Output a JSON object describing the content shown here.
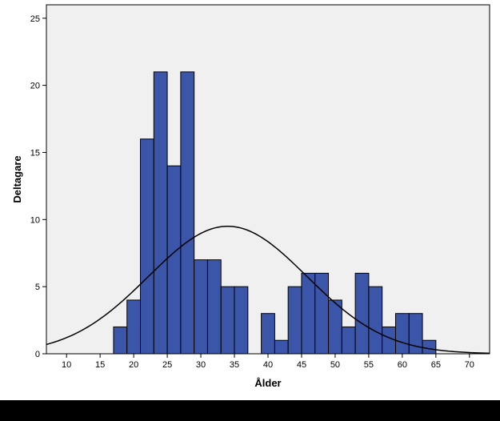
{
  "chart_data": {
    "type": "bar",
    "subtype": "histogram",
    "xlabel": "Ålder",
    "ylabel": "Deltagare",
    "xlim": [
      7,
      73
    ],
    "ylim": [
      0,
      26
    ],
    "x_ticks": [
      "10",
      "15",
      "20",
      "25",
      "30",
      "35",
      "40",
      "45",
      "50",
      "55",
      "60",
      "65",
      "70"
    ],
    "y_ticks": [
      "0",
      "5",
      "10",
      "15",
      "20",
      "25"
    ],
    "bin_width": 2,
    "bins": [
      {
        "start": 17,
        "count": 2
      },
      {
        "start": 19,
        "count": 4
      },
      {
        "start": 21,
        "count": 16
      },
      {
        "start": 23,
        "count": 21
      },
      {
        "start": 25,
        "count": 14
      },
      {
        "start": 27,
        "count": 21
      },
      {
        "start": 29,
        "count": 7
      },
      {
        "start": 31,
        "count": 7
      },
      {
        "start": 33,
        "count": 5
      },
      {
        "start": 35,
        "count": 5
      },
      {
        "start": 39,
        "count": 3
      },
      {
        "start": 41,
        "count": 1
      },
      {
        "start": 43,
        "count": 5
      },
      {
        "start": 45,
        "count": 6
      },
      {
        "start": 47,
        "count": 6
      },
      {
        "start": 49,
        "count": 4
      },
      {
        "start": 51,
        "count": 2
      },
      {
        "start": 53,
        "count": 6
      },
      {
        "start": 55,
        "count": 5
      },
      {
        "start": 57,
        "count": 2
      },
      {
        "start": 59,
        "count": 3
      },
      {
        "start": 61,
        "count": 3
      },
      {
        "start": 63,
        "count": 1
      }
    ],
    "normal_curve": {
      "mean": 34,
      "peak": 9.5,
      "sd": 11.8
    },
    "grid": false,
    "colors": {
      "bar_fill": "#3b55a9",
      "bar_stroke": "#000000",
      "plot_background": "#f0f0f0",
      "curve": "#000000"
    }
  }
}
